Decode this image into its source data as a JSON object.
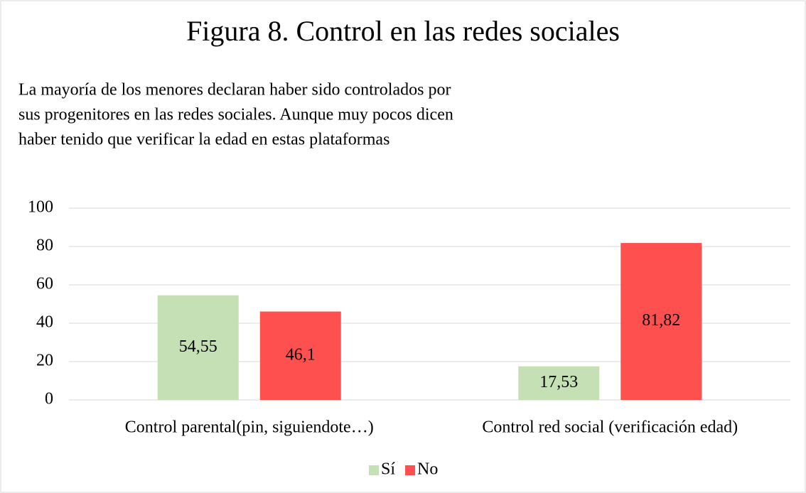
{
  "chart_data": {
    "type": "bar",
    "title": "Figura 8. Control en las redes sociales",
    "subtitle": [
      "La mayoría de los menores declaran haber sido controlados por",
      "sus progenitores en las redes sociales. Aunque muy pocos dicen",
      "haber tenido que verificar la edad en estas plataformas"
    ],
    "categories": [
      "Control parental(pin, siguiendote…)",
      "Control red social (verificación edad)"
    ],
    "series": [
      {
        "name": "Sí",
        "color": "#c5e0b4",
        "values": [
          54.55,
          17.53
        ],
        "value_labels": [
          "54,55",
          "17,53"
        ]
      },
      {
        "name": "No",
        "color": "#ff5050",
        "values": [
          46.1,
          81.82
        ],
        "value_labels": [
          "46,1",
          "81,82"
        ]
      }
    ],
    "ylim": [
      0,
      100
    ],
    "yticks": [
      0,
      20,
      40,
      60,
      80,
      100
    ],
    "grid": true,
    "legend": "bottom"
  }
}
